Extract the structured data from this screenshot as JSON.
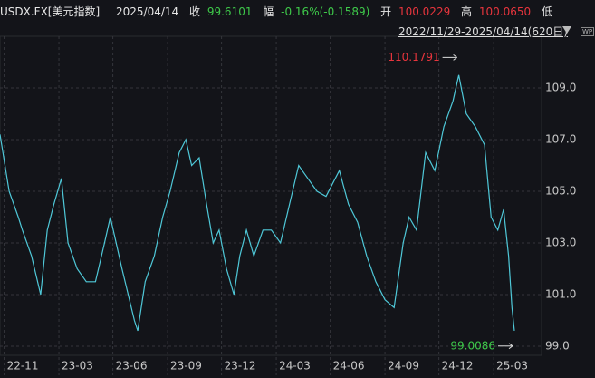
{
  "header": {
    "symbol": "USDX.FX[美元指数]",
    "date": "2025/04/14",
    "close_label": "收",
    "close": "99.6101",
    "change_label": "幅",
    "change": "-0.16%(-0.1589)",
    "open_label": "开",
    "open": "100.0229",
    "high_label": "高",
    "high": "100.0650",
    "low_label": "低",
    "range": "2022/11/29-2025/04/14(620日)",
    "badge": "WP"
  },
  "chart_data": {
    "type": "line",
    "color": "#4fc8d8",
    "x": [
      0,
      11,
      22,
      27,
      38,
      49,
      57,
      65,
      74,
      82,
      93,
      104,
      115,
      126,
      133,
      147,
      162,
      166,
      175,
      186,
      196,
      205,
      216,
      224,
      231,
      240,
      249,
      257,
      264,
      273,
      282,
      289,
      297,
      306,
      317,
      327,
      338,
      349,
      360,
      371,
      382,
      393,
      409,
      420,
      431,
      442,
      453,
      464,
      475,
      486,
      493,
      502,
      513,
      524,
      535,
      546,
      553,
      562,
      573,
      584,
      592,
      600,
      607,
      613,
      617,
      620
    ],
    "values": [
      107.2,
      105,
      104,
      103.5,
      102.5,
      101,
      103.5,
      104.5,
      105.5,
      103,
      102,
      101.5,
      101.5,
      103,
      104,
      102,
      100,
      99.6,
      101.5,
      102.5,
      104,
      105,
      106.5,
      107,
      106,
      106.3,
      104.5,
      103,
      103.5,
      102,
      101,
      102.5,
      103.5,
      102.5,
      103.5,
      103.5,
      103,
      104.5,
      106,
      105.5,
      105,
      104.8,
      105.8,
      104.5,
      103.8,
      102.5,
      101.5,
      100.8,
      100.5,
      103,
      104,
      103.5,
      106.5,
      105.8,
      107.5,
      108.5,
      109.5,
      108,
      107.5,
      106.8,
      104,
      103.5,
      104.3,
      102.5,
      100.5,
      99.6
    ],
    "xlim": [
      0,
      620
    ],
    "xticks": [
      {
        "value": 5,
        "label": "22-11"
      },
      {
        "value": 71,
        "label": "23-03"
      },
      {
        "value": 136,
        "label": "23-06"
      },
      {
        "value": 202,
        "label": "23-09"
      },
      {
        "value": 267,
        "label": "23-12"
      },
      {
        "value": 333,
        "label": "24-03"
      },
      {
        "value": 398,
        "label": "24-06"
      },
      {
        "value": 464,
        "label": "24-09"
      },
      {
        "value": 529,
        "label": "24-12"
      },
      {
        "value": 595,
        "label": "25-03"
      }
    ],
    "ylim": [
      98.65,
      111.0
    ],
    "yticks": [
      {
        "value": 99,
        "label": "99.0"
      },
      {
        "value": 101,
        "label": "101.0"
      },
      {
        "value": 103,
        "label": "103.0"
      },
      {
        "value": 105,
        "label": "105.0"
      },
      {
        "value": 107,
        "label": "107.0"
      },
      {
        "value": 109,
        "label": "109.0"
      }
    ],
    "grid": true,
    "annotations": [
      {
        "value": 110.1791,
        "x": 553,
        "color": "#e8353d"
      },
      {
        "value": 99.0086,
        "x": 620,
        "color": "#3ec94a"
      }
    ]
  }
}
